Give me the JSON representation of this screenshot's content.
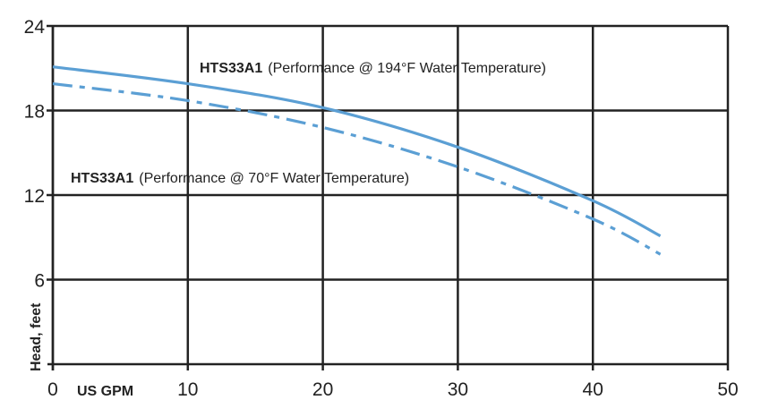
{
  "chart_data": {
    "type": "line",
    "xlabel": "US GPM",
    "ylabel": "Head, feet",
    "xlim": [
      0,
      50
    ],
    "ylim": [
      0,
      24
    ],
    "x_ticks": [
      "0",
      "10",
      "20",
      "30",
      "40",
      "50"
    ],
    "y_ticks": [
      "6",
      "12",
      "18",
      "24"
    ],
    "grid": true,
    "line_color": "#5b9fd4",
    "series": [
      {
        "model": "HTS33A1",
        "note": "(Performance @ 194°F Water Temperature)",
        "style": "solid",
        "x": [
          0,
          10,
          20,
          30,
          40,
          45
        ],
        "y": [
          21.1,
          19.9,
          18.2,
          15.4,
          11.6,
          9.1
        ]
      },
      {
        "model": "HTS33A1",
        "note": "(Performance @ 70°F Water Temperature)",
        "style": "dash-dot",
        "x": [
          0,
          10,
          20,
          30,
          40,
          45
        ],
        "y": [
          19.9,
          18.7,
          16.8,
          14.0,
          10.3,
          7.8
        ]
      }
    ]
  }
}
